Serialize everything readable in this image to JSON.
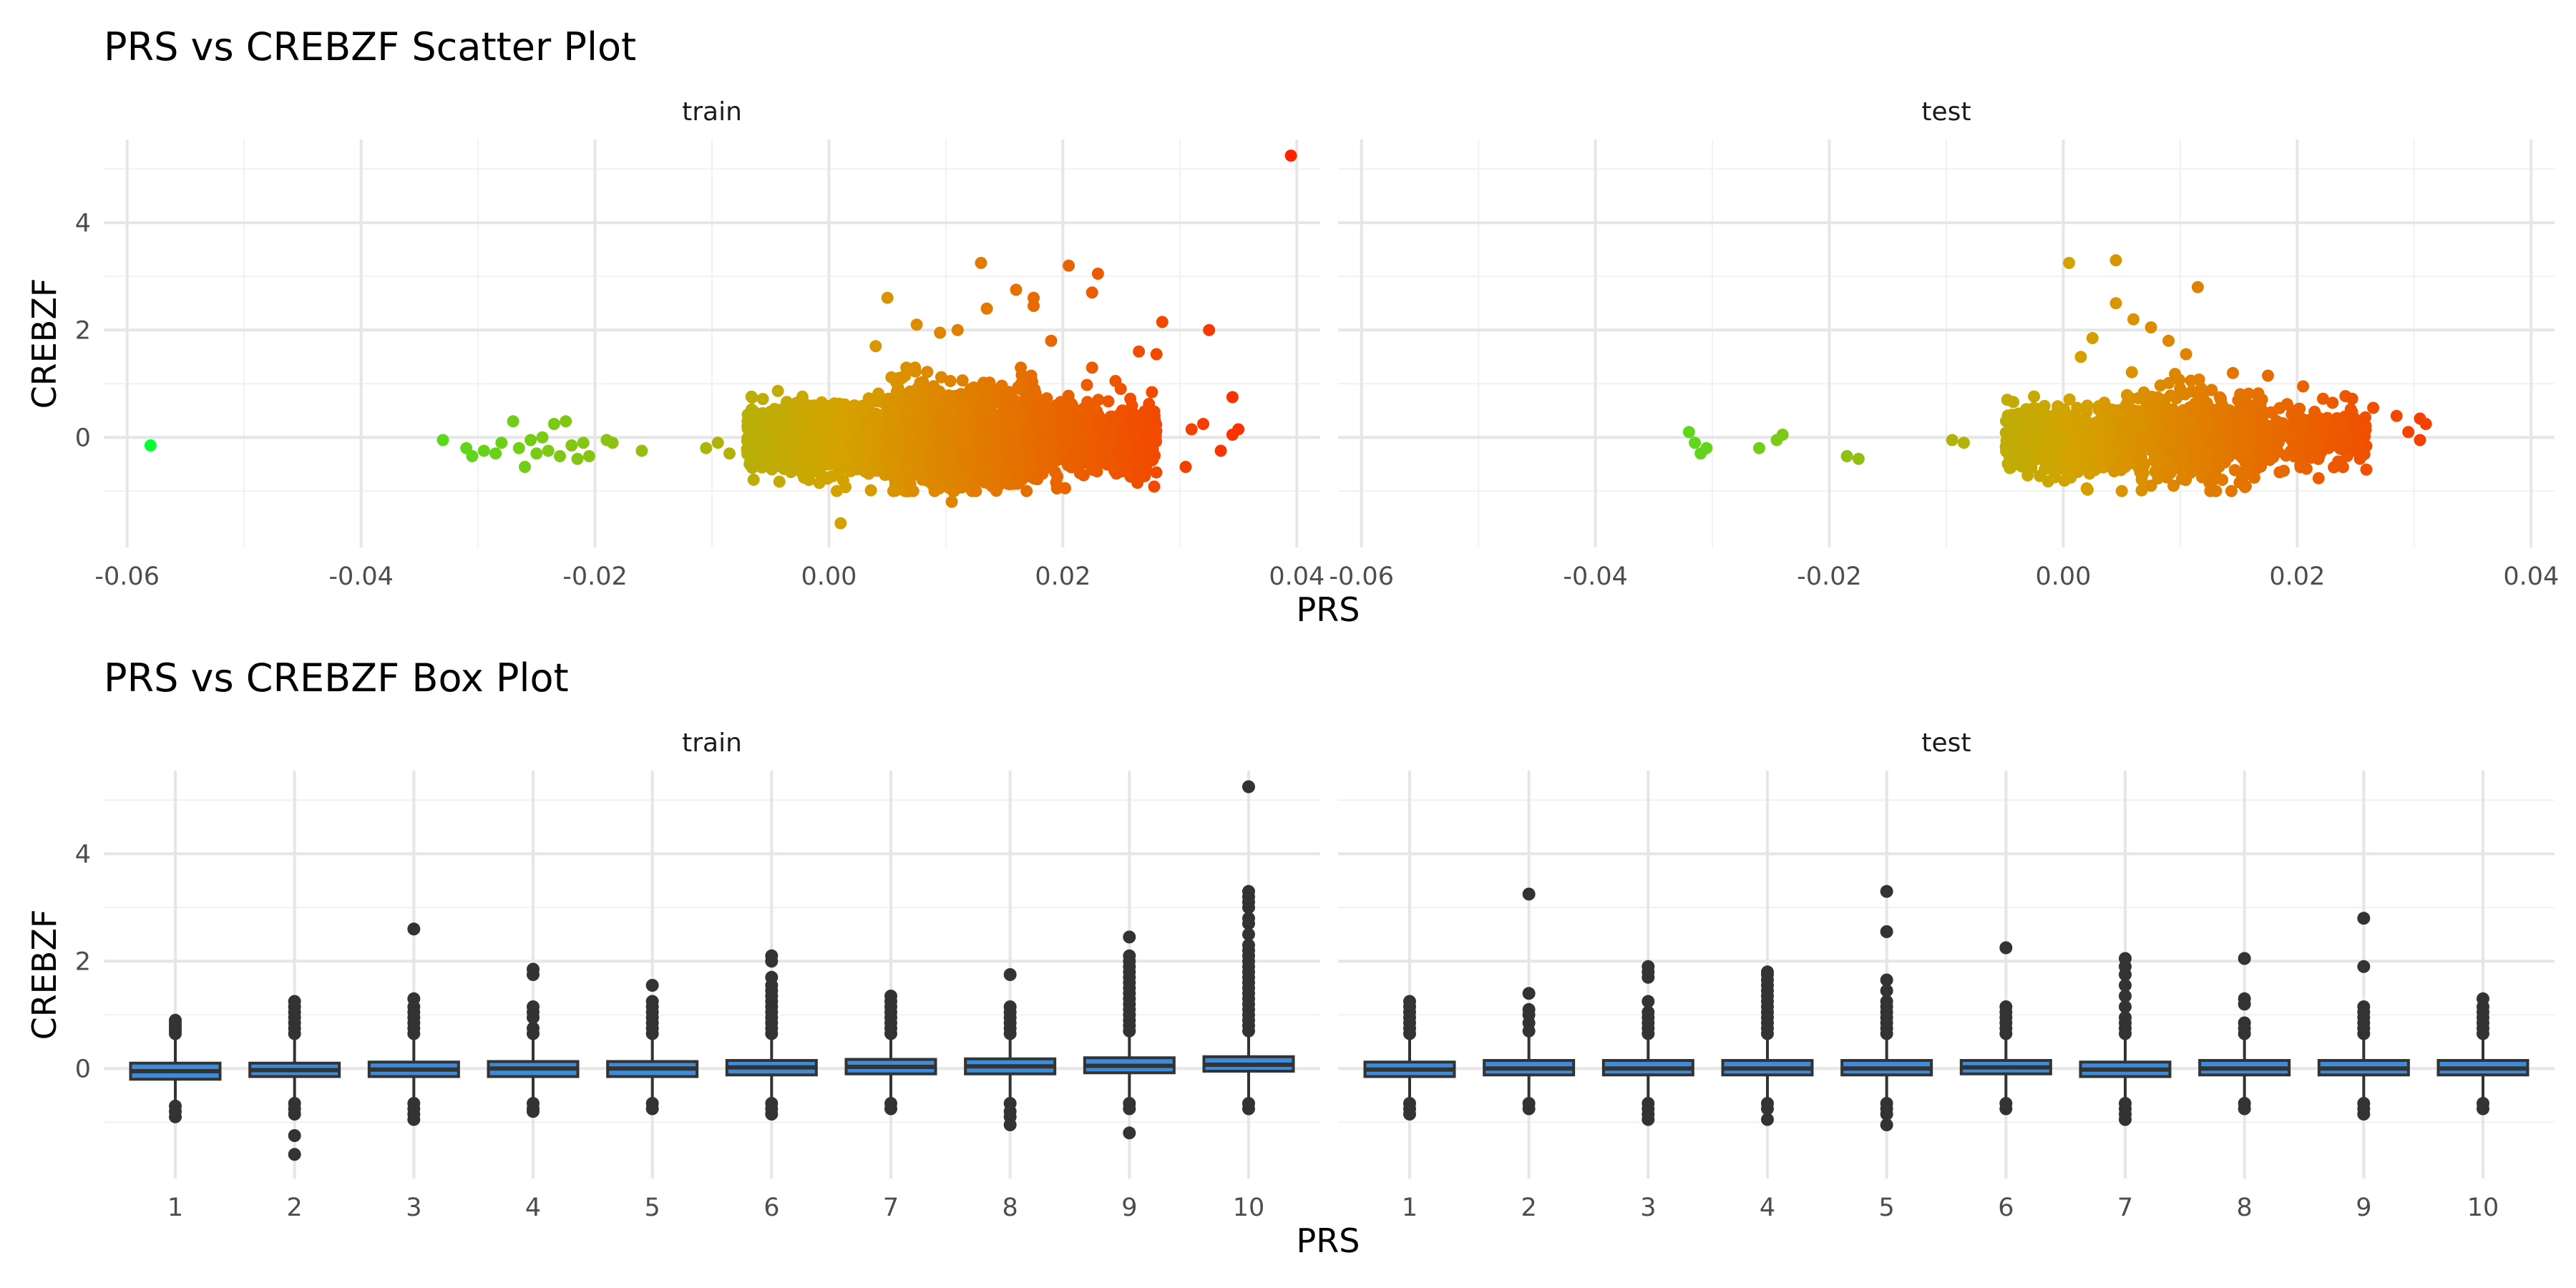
{
  "chart_data": [
    {
      "type": "scatter",
      "title": "PRS vs CREBZF Scatter Plot",
      "xlabel": "PRS",
      "ylabel": "CREBZF",
      "xlim": [
        -0.062,
        0.042
      ],
      "ylim": [
        -2.05,
        5.55
      ],
      "x_ticks": [
        -0.06,
        -0.04,
        -0.02,
        0.0,
        0.02,
        0.04
      ],
      "x_tick_labels": [
        "-0.06",
        "-0.04",
        "-0.02",
        "0.00",
        "0.02",
        "0.04"
      ],
      "y_ticks": [
        0,
        2,
        4
      ],
      "y_tick_labels": [
        "0",
        "2",
        "4"
      ],
      "grid": true,
      "legend": "none",
      "color_scale": {
        "low_value": -0.058,
        "high_value": 0.04,
        "low": "#00ff33",
        "mid": "#d4a300",
        "high": "#ff2200"
      },
      "facets": [
        "train",
        "test"
      ],
      "facet_points": {
        "train": [
          [
            -0.058,
            -0.15
          ],
          [
            0.0395,
            5.25
          ],
          [
            -0.033,
            -0.05
          ],
          [
            -0.031,
            -0.2
          ],
          [
            -0.0305,
            -0.35
          ],
          [
            -0.0295,
            -0.25
          ],
          [
            -0.0285,
            -0.3
          ],
          [
            -0.028,
            -0.1
          ],
          [
            -0.027,
            0.3
          ],
          [
            -0.0265,
            -0.2
          ],
          [
            -0.026,
            -0.55
          ],
          [
            -0.0255,
            -0.05
          ],
          [
            -0.025,
            -0.3
          ],
          [
            -0.0245,
            0.0
          ],
          [
            -0.024,
            -0.25
          ],
          [
            -0.0235,
            0.25
          ],
          [
            -0.023,
            -0.35
          ],
          [
            -0.0225,
            0.3
          ],
          [
            -0.022,
            -0.15
          ],
          [
            -0.0215,
            -0.4
          ],
          [
            -0.021,
            -0.1
          ],
          [
            -0.0205,
            -0.35
          ],
          [
            -0.019,
            -0.05
          ],
          [
            -0.0185,
            -0.1
          ],
          [
            -0.016,
            -0.25
          ],
          [
            -0.0105,
            -0.2
          ],
          [
            -0.0095,
            -0.1
          ],
          [
            -0.0085,
            -0.3
          ],
          [
            0.005,
            2.6
          ],
          [
            0.013,
            3.25
          ],
          [
            0.0205,
            3.2
          ],
          [
            0.016,
            2.75
          ],
          [
            0.023,
            3.05
          ],
          [
            0.0225,
            2.7
          ],
          [
            0.0175,
            2.6
          ],
          [
            0.0135,
            2.4
          ],
          [
            0.011,
            2.0
          ],
          [
            0.0175,
            2.45
          ],
          [
            0.019,
            1.8
          ],
          [
            0.0225,
            1.3
          ],
          [
            0.0265,
            1.6
          ],
          [
            0.0285,
            2.15
          ],
          [
            0.0325,
            2.0
          ],
          [
            0.028,
            1.55
          ],
          [
            0.0245,
            1.05
          ],
          [
            0.0345,
            0.75
          ],
          [
            0.0335,
            -0.25
          ],
          [
            0.0345,
            0.05
          ],
          [
            0.035,
            0.15
          ],
          [
            0.0305,
            -0.55
          ],
          [
            0.031,
            0.15
          ],
          [
            0.032,
            0.25
          ],
          [
            0.004,
            1.7
          ],
          [
            0.0075,
            2.1
          ],
          [
            0.0095,
            1.95
          ],
          [
            0.001,
            -1.6
          ],
          [
            0.0055,
            -1.0
          ],
          [
            0.0105,
            -1.2
          ],
          [
            0.0145,
            -0.9
          ],
          [
            0.0195,
            -0.95
          ],
          [
            0.0225,
            -0.6
          ],
          [
            0.0265,
            -0.35
          ]
        ],
        "test": [
          [
            -0.032,
            0.1
          ],
          [
            -0.0315,
            -0.1
          ],
          [
            -0.031,
            -0.3
          ],
          [
            -0.0305,
            -0.2
          ],
          [
            -0.026,
            -0.2
          ],
          [
            -0.0245,
            -0.05
          ],
          [
            -0.024,
            0.05
          ],
          [
            -0.0185,
            -0.35
          ],
          [
            -0.0175,
            -0.4
          ],
          [
            -0.0095,
            -0.05
          ],
          [
            -0.0085,
            -0.1
          ],
          [
            0.0005,
            3.25
          ],
          [
            0.0045,
            3.3
          ],
          [
            0.0045,
            2.5
          ],
          [
            0.0115,
            2.8
          ],
          [
            0.006,
            2.2
          ],
          [
            0.0075,
            2.05
          ],
          [
            0.009,
            1.8
          ],
          [
            0.0025,
            1.85
          ],
          [
            0.0015,
            1.5
          ],
          [
            0.0105,
            1.55
          ],
          [
            0.0145,
            1.2
          ],
          [
            0.0175,
            1.15
          ],
          [
            0.0205,
            0.95
          ],
          [
            0.0265,
            0.55
          ],
          [
            0.0285,
            0.4
          ],
          [
            0.0305,
            0.35
          ],
          [
            0.031,
            0.25
          ],
          [
            0.0295,
            0.1
          ],
          [
            0.0305,
            -0.05
          ],
          [
            0.002,
            -0.95
          ],
          [
            0.005,
            -1.0
          ],
          [
            0.0075,
            -0.9
          ],
          [
            0.0125,
            -0.85
          ],
          [
            0.0185,
            -0.65
          ],
          [
            0.0235,
            -0.45
          ]
        ]
      },
      "dense_cloud": {
        "train": [
          {
            "x_range": [
              -0.007,
              0.005
            ],
            "y_mean": -0.05,
            "y_sd": 0.28,
            "n": 1400
          },
          {
            "x_range": [
              0.005,
              0.018
            ],
            "y_mean": 0.0,
            "y_sd": 0.42,
            "n": 1600
          },
          {
            "x_range": [
              0.018,
              0.028
            ],
            "y_mean": 0.0,
            "y_sd": 0.3,
            "n": 750
          }
        ],
        "test": [
          {
            "x_range": [
              -0.005,
              0.005
            ],
            "y_mean": -0.05,
            "y_sd": 0.28,
            "n": 700
          },
          {
            "x_range": [
              0.005,
              0.017
            ],
            "y_mean": 0.0,
            "y_sd": 0.38,
            "n": 700
          },
          {
            "x_range": [
              0.017,
              0.026
            ],
            "y_mean": 0.0,
            "y_sd": 0.25,
            "n": 260
          }
        ]
      }
    },
    {
      "type": "box",
      "title": "PRS vs CREBZF Box Plot",
      "xlabel": "PRS",
      "ylabel": "CREBZF",
      "categories": [
        "1",
        "2",
        "3",
        "4",
        "5",
        "6",
        "7",
        "8",
        "9",
        "10"
      ],
      "ylim": [
        -2.05,
        5.55
      ],
      "y_ticks": [
        0,
        2,
        4
      ],
      "y_tick_labels": [
        "0",
        "2",
        "4"
      ],
      "grid": true,
      "box_fill": "#3d8bd9",
      "facets": [
        "train",
        "test"
      ],
      "facet_boxes": {
        "train": [
          {
            "q1": -0.2,
            "median": -0.05,
            "q3": 0.1,
            "whisker_low": -0.6,
            "whisker_high": 0.6,
            "outliers": [
              0.65,
              0.7,
              0.75,
              0.8,
              0.85,
              0.9,
              -0.7,
              -0.8,
              -0.9
            ]
          },
          {
            "q1": -0.15,
            "median": -0.03,
            "q3": 0.1,
            "whisker_low": -0.6,
            "whisker_high": 0.6,
            "outliers": [
              0.65,
              0.75,
              0.85,
              0.95,
              1.05,
              1.15,
              1.25,
              -0.65,
              -0.75,
              -0.85,
              -1.25,
              -1.6
            ]
          },
          {
            "q1": -0.15,
            "median": -0.02,
            "q3": 0.12,
            "whisker_low": -0.6,
            "whisker_high": 0.6,
            "outliers": [
              0.65,
              0.75,
              0.85,
              0.95,
              1.05,
              1.15,
              1.3,
              2.6,
              -0.65,
              -0.75,
              -0.85,
              -0.95
            ]
          },
          {
            "q1": -0.15,
            "median": 0.0,
            "q3": 0.13,
            "whisker_low": -0.6,
            "whisker_high": 0.6,
            "outliers": [
              0.65,
              0.75,
              0.95,
              1.05,
              1.15,
              1.75,
              1.85,
              -0.65,
              -0.75,
              -0.8
            ]
          },
          {
            "q1": -0.15,
            "median": 0.0,
            "q3": 0.13,
            "whisker_low": -0.6,
            "whisker_high": 0.6,
            "outliers": [
              0.65,
              0.75,
              0.85,
              0.95,
              1.05,
              1.15,
              1.25,
              1.55,
              -0.65,
              -0.75
            ]
          },
          {
            "q1": -0.12,
            "median": 0.02,
            "q3": 0.15,
            "whisker_low": -0.6,
            "whisker_high": 0.6,
            "outliers": [
              0.65,
              0.75,
              0.85,
              0.95,
              1.05,
              1.15,
              1.25,
              1.35,
              1.45,
              1.55,
              1.7,
              2.0,
              2.1,
              -0.65,
              -0.75,
              -0.85
            ]
          },
          {
            "q1": -0.1,
            "median": 0.03,
            "q3": 0.17,
            "whisker_low": -0.6,
            "whisker_high": 0.6,
            "outliers": [
              0.65,
              0.75,
              0.85,
              0.95,
              1.05,
              1.15,
              1.25,
              1.35,
              -0.65,
              -0.75
            ]
          },
          {
            "q1": -0.1,
            "median": 0.04,
            "q3": 0.18,
            "whisker_low": -0.6,
            "whisker_high": 0.6,
            "outliers": [
              0.65,
              0.75,
              0.85,
              0.95,
              1.05,
              1.15,
              1.75,
              -0.65,
              -0.8,
              -0.9,
              -1.05
            ]
          },
          {
            "q1": -0.08,
            "median": 0.05,
            "q3": 0.2,
            "whisker_low": -0.6,
            "whisker_high": 0.65,
            "outliers": [
              0.7,
              0.8,
              0.9,
              1.0,
              1.1,
              1.2,
              1.3,
              1.4,
              1.5,
              1.6,
              1.7,
              1.8,
              1.9,
              2.0,
              2.1,
              2.45,
              -0.65,
              -0.75,
              -1.2
            ]
          },
          {
            "q1": -0.05,
            "median": 0.07,
            "q3": 0.22,
            "whisker_low": -0.6,
            "whisker_high": 0.65,
            "outliers": [
              0.7,
              0.8,
              0.9,
              1.0,
              1.1,
              1.2,
              1.3,
              1.4,
              1.5,
              1.6,
              1.7,
              1.8,
              1.9,
              2.0,
              2.1,
              2.2,
              2.3,
              2.5,
              2.7,
              2.8,
              3.0,
              3.1,
              3.2,
              3.3,
              5.25,
              -0.65,
              -0.75
            ]
          }
        ],
        "test": [
          {
            "q1": -0.15,
            "median": -0.02,
            "q3": 0.12,
            "whisker_low": -0.6,
            "whisker_high": 0.6,
            "outliers": [
              0.65,
              0.75,
              0.85,
              0.95,
              1.05,
              1.15,
              1.25,
              -0.65,
              -0.75,
              -0.85
            ]
          },
          {
            "q1": -0.12,
            "median": 0.0,
            "q3": 0.15,
            "whisker_low": -0.6,
            "whisker_high": 0.6,
            "outliers": [
              0.7,
              0.85,
              1.0,
              1.1,
              1.4,
              3.25,
              -0.65,
              -0.75
            ]
          },
          {
            "q1": -0.12,
            "median": 0.0,
            "q3": 0.15,
            "whisker_low": -0.6,
            "whisker_high": 0.6,
            "outliers": [
              0.65,
              0.75,
              0.85,
              0.95,
              1.05,
              1.25,
              1.7,
              1.8,
              1.9,
              -0.65,
              -0.75,
              -0.85,
              -0.95
            ]
          },
          {
            "q1": -0.12,
            "median": 0.0,
            "q3": 0.15,
            "whisker_low": -0.6,
            "whisker_high": 0.6,
            "outliers": [
              0.65,
              0.75,
              0.85,
              0.95,
              1.05,
              1.15,
              1.25,
              1.35,
              1.45,
              1.55,
              1.65,
              1.75,
              1.8,
              -0.65,
              -0.75,
              -0.95
            ]
          },
          {
            "q1": -0.12,
            "median": 0.0,
            "q3": 0.15,
            "whisker_low": -0.6,
            "whisker_high": 0.6,
            "outliers": [
              0.65,
              0.75,
              0.85,
              0.95,
              1.05,
              1.15,
              1.25,
              1.45,
              1.65,
              2.55,
              3.3,
              -0.65,
              -0.75,
              -0.85,
              -1.05
            ]
          },
          {
            "q1": -0.1,
            "median": 0.02,
            "q3": 0.15,
            "whisker_low": -0.6,
            "whisker_high": 0.6,
            "outliers": [
              0.65,
              0.75,
              0.85,
              0.95,
              1.05,
              1.15,
              2.25,
              -0.65,
              -0.75
            ]
          },
          {
            "q1": -0.15,
            "median": -0.02,
            "q3": 0.12,
            "whisker_low": -0.6,
            "whisker_high": 0.6,
            "outliers": [
              0.65,
              0.75,
              0.85,
              0.95,
              1.15,
              1.35,
              1.55,
              1.75,
              1.9,
              2.05,
              -0.65,
              -0.75,
              -0.85,
              -0.95
            ]
          },
          {
            "q1": -0.12,
            "median": 0.0,
            "q3": 0.15,
            "whisker_low": -0.6,
            "whisker_high": 0.6,
            "outliers": [
              0.65,
              0.75,
              0.85,
              1.2,
              1.3,
              2.05,
              -0.65,
              -0.75
            ]
          },
          {
            "q1": -0.12,
            "median": 0.0,
            "q3": 0.15,
            "whisker_low": -0.6,
            "whisker_high": 0.6,
            "outliers": [
              0.65,
              0.75,
              0.85,
              0.95,
              1.05,
              1.15,
              1.9,
              2.8,
              -0.65,
              -0.75,
              -0.85
            ]
          },
          {
            "q1": -0.12,
            "median": 0.0,
            "q3": 0.15,
            "whisker_low": -0.6,
            "whisker_high": 0.6,
            "outliers": [
              0.65,
              0.75,
              0.85,
              0.95,
              1.05,
              1.15,
              1.3,
              -0.65,
              -0.75
            ]
          }
        ]
      }
    }
  ]
}
